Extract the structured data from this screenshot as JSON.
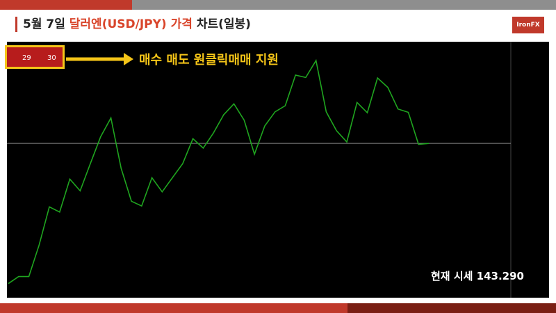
{
  "header": {
    "title_parts": [
      "5월 7일 ",
      "달러엔(USD/JPY) 가격",
      " 차트(일봉)"
    ],
    "logo": "IronFX"
  },
  "widget": {
    "sell": "29",
    "buy": "30"
  },
  "chart_data": {
    "type": "line",
    "annotations": [
      "매수 매도 원클릭매매 지원",
      "현재 시세 143.290"
    ],
    "categories": [
      null,
      null,
      null,
      null,
      null,
      null,
      null,
      null,
      null,
      null,
      null,
      null,
      null,
      null,
      null,
      null,
      null,
      null,
      null,
      null,
      null,
      null,
      null,
      null,
      null,
      null,
      null,
      null,
      null,
      null,
      null,
      null,
      null,
      null,
      null,
      null,
      null,
      null,
      null,
      null,
      null,
      null
    ],
    "series": [
      {
        "name": "USD/JPY",
        "color": "#1fa51f",
        "values": [
          113.5,
          115,
          115,
          121.7,
          129.8,
          128.7,
          135.7,
          133.2,
          139,
          144.7,
          148.7,
          138,
          131,
          130,
          136,
          133,
          136,
          139,
          144.3,
          142.3,
          145.5,
          149.4,
          151.7,
          148.2,
          141,
          147,
          150,
          151.3,
          157.8,
          157.3,
          160.9,
          150,
          146,
          143.6,
          152,
          149.8,
          157.2,
          155.2,
          150.6,
          149.9,
          143.1,
          143.29
        ]
      }
    ],
    "ylim": [
      110.5,
      164.9
    ],
    "current_price_line": true
  }
}
